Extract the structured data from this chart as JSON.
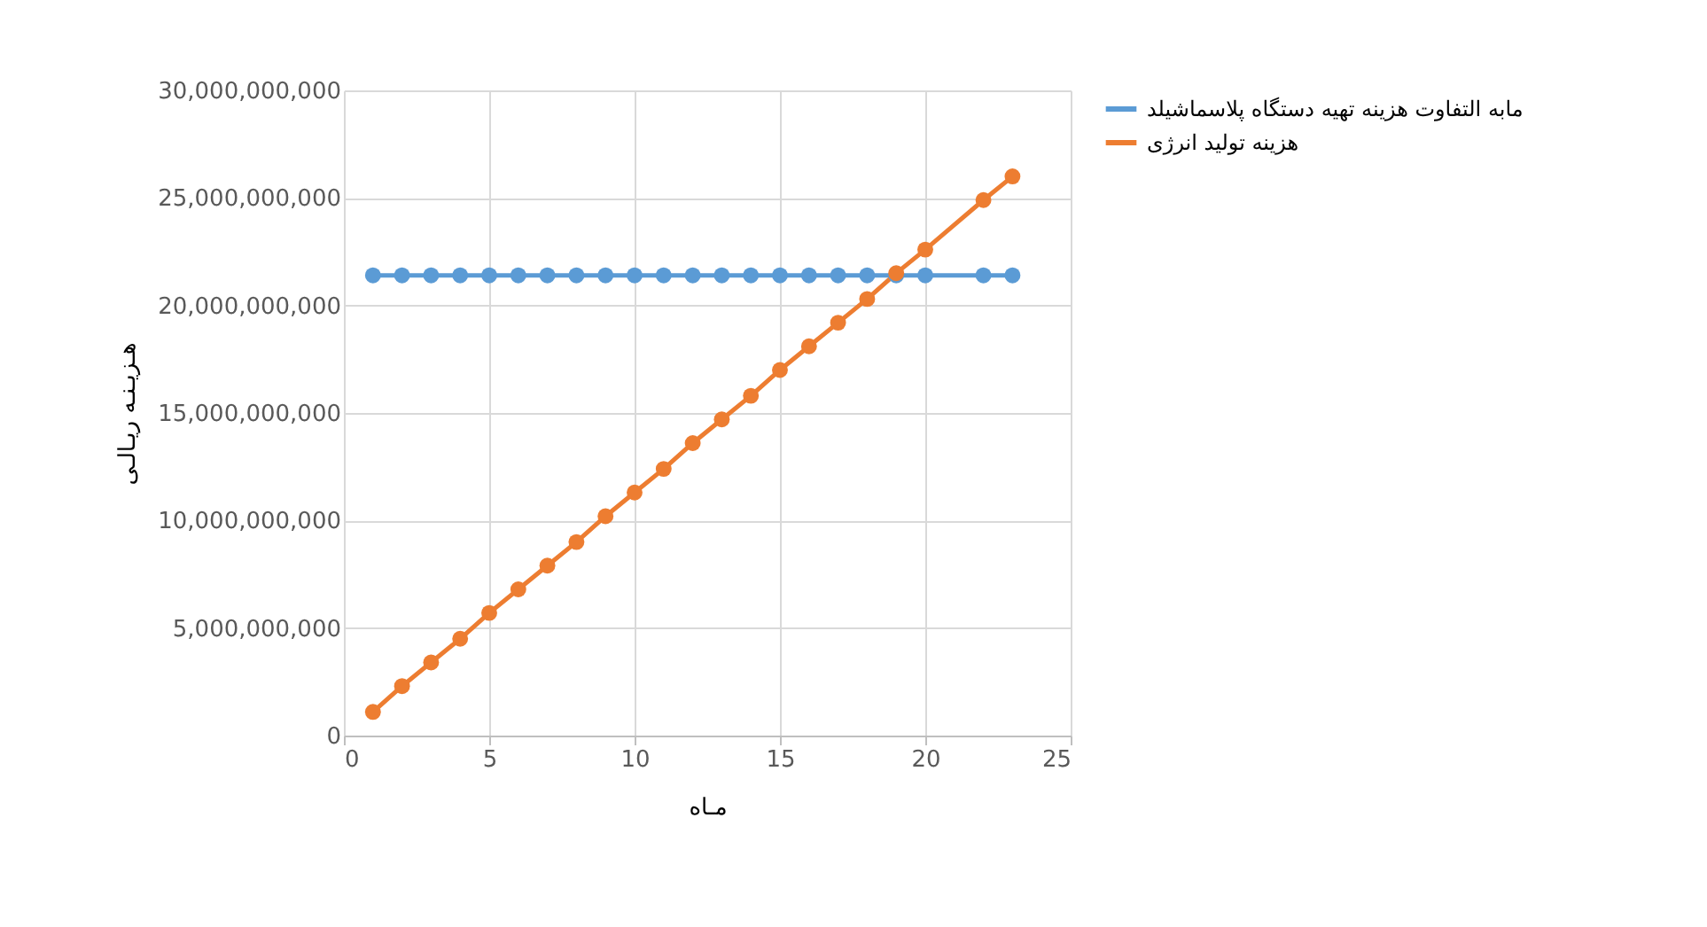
{
  "chart_data": {
    "type": "line",
    "xlabel": "مـاه",
    "ylabel": "هـزیـنـه ریـالـی",
    "x": [
      1,
      2,
      3,
      4,
      5,
      6,
      7,
      8,
      9,
      10,
      11,
      12,
      13,
      14,
      15,
      16,
      17,
      18,
      19,
      20,
      22,
      23
    ],
    "series": [
      {
        "name": "مابه التفاوت هزینه تهیه دستگاه پلاسماشیلد",
        "color": "#5b9bd5",
        "values": [
          21400000000,
          21400000000,
          21400000000,
          21400000000,
          21400000000,
          21400000000,
          21400000000,
          21400000000,
          21400000000,
          21400000000,
          21400000000,
          21400000000,
          21400000000,
          21400000000,
          21400000000,
          21400000000,
          21400000000,
          21400000000,
          21400000000,
          21400000000,
          21400000000,
          21400000000
        ]
      },
      {
        "name": "هزینه تولید انرژی",
        "color": "#ed7d31",
        "values": [
          1100000000,
          2300000000,
          3400000000,
          4500000000,
          5700000000,
          6800000000,
          7900000000,
          9000000000,
          10200000000,
          11300000000,
          12400000000,
          13600000000,
          14700000000,
          15800000000,
          17000000000,
          18100000000,
          19200000000,
          20300000000,
          21500000000,
          22600000000,
          24900000000,
          26000000000
        ]
      }
    ],
    "xlim": [
      0,
      25
    ],
    "xticks": [
      0,
      5,
      10,
      15,
      20,
      25
    ],
    "ylim": [
      0,
      30000000000
    ],
    "yticks": [
      0,
      {
        "value": 5000000000,
        "label": "5,000,000,000"
      },
      {
        "value": 10000000000,
        "label": "10,000,000,000"
      },
      {
        "value": 15000000000,
        "label": "15,000,000,000"
      },
      {
        "value": 20000000000,
        "label": "20,000,000,000"
      },
      {
        "value": 25000000000,
        "label": "25,000,000,000"
      },
      {
        "value": 30000000000,
        "label": "30,000,000,000"
      }
    ],
    "grid": true,
    "legend": "right",
    "marker": "circle",
    "line_style": "solid"
  }
}
